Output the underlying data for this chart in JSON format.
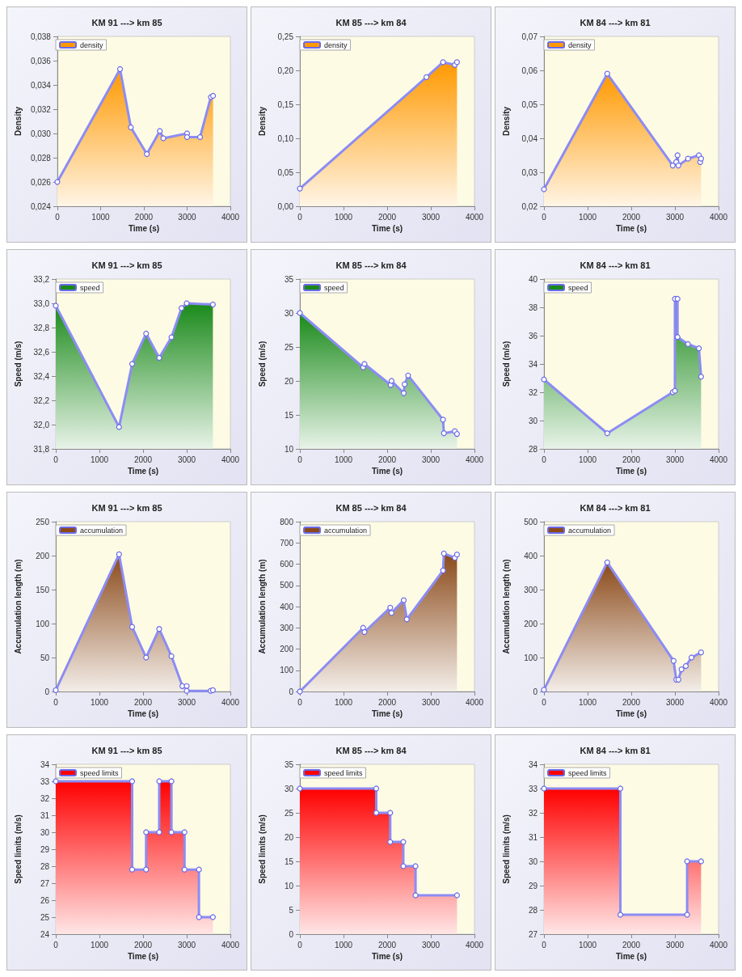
{
  "chart_data": [
    {
      "type": "area",
      "title": "KM 91 ---> km 85",
      "xlabel": "Time (s)",
      "ylabel": "Density",
      "legend": "top left",
      "marker": "circle",
      "grid": false,
      "xlim": [
        0,
        4000
      ],
      "xticks": [
        0,
        1000,
        2000,
        3000,
        4000
      ],
      "ylim": [
        0.024,
        0.038
      ],
      "yticks": [
        {
          "value": 0.024,
          "label": "0,024"
        },
        {
          "value": 0.026,
          "label": "0,026"
        },
        {
          "value": 0.028,
          "label": "0,028"
        },
        {
          "value": 0.03,
          "label": "0,030"
        },
        {
          "value": 0.032,
          "label": "0,032"
        },
        {
          "value": 0.034,
          "label": "0,034"
        },
        {
          "value": 0.036,
          "label": "0,036"
        },
        {
          "value": 0.038,
          "label": "0,038"
        }
      ],
      "series": [
        {
          "name": "density",
          "color": "#ff9900",
          "x": [
            0,
            1450,
            1700,
            2070,
            2370,
            2450,
            3000,
            3000,
            3300,
            3550,
            3600
          ],
          "values": [
            0.026,
            0.0353,
            0.0305,
            0.0283,
            0.0302,
            0.0296,
            0.03,
            0.0297,
            0.0297,
            0.033,
            0.0331
          ]
        }
      ]
    },
    {
      "type": "area",
      "title": "KM 85 ---> km 84",
      "xlabel": "Time (s)",
      "ylabel": "Density",
      "legend": "top left",
      "marker": "circle",
      "grid": false,
      "xlim": [
        0,
        4000
      ],
      "xticks": [
        0,
        1000,
        2000,
        3000,
        4000
      ],
      "ylim": [
        0,
        0.25
      ],
      "yticks": [
        {
          "value": 0,
          "label": "0,00"
        },
        {
          "value": 0.05,
          "label": "0,05"
        },
        {
          "value": 0.1,
          "label": "0,10"
        },
        {
          "value": 0.15,
          "label": "0,15"
        },
        {
          "value": 0.2,
          "label": "0,20"
        },
        {
          "value": 0.25,
          "label": "0,25"
        }
      ],
      "series": [
        {
          "name": "density",
          "color": "#ff9900",
          "x": [
            0,
            2900,
            3280,
            3550,
            3600
          ],
          "values": [
            0.026,
            0.19,
            0.212,
            0.208,
            0.212
          ]
        }
      ]
    },
    {
      "type": "area",
      "title": "KM 84 ---> km 81",
      "xlabel": "Time (s)",
      "ylabel": "Density",
      "legend": "top left",
      "marker": "circle",
      "grid": false,
      "xlim": [
        0,
        4000
      ],
      "xticks": [
        0,
        1000,
        2000,
        3000,
        4000
      ],
      "ylim": [
        0.02,
        0.07
      ],
      "yticks": [
        {
          "value": 0.02,
          "label": "0,02"
        },
        {
          "value": 0.03,
          "label": "0,03"
        },
        {
          "value": 0.04,
          "label": "0,04"
        },
        {
          "value": 0.05,
          "label": "0,05"
        },
        {
          "value": 0.06,
          "label": "0,06"
        },
        {
          "value": 0.07,
          "label": "0,07"
        }
      ],
      "series": [
        {
          "name": "density",
          "color": "#ff9900",
          "x": [
            0,
            1450,
            2950,
            3030,
            3060,
            3080,
            3300,
            3550,
            3580,
            3600
          ],
          "values": [
            0.025,
            0.059,
            0.032,
            0.033,
            0.035,
            0.032,
            0.034,
            0.035,
            0.033,
            0.034
          ]
        }
      ]
    },
    {
      "type": "area",
      "title": "KM 91 ---> km 85",
      "xlabel": "Time (s)",
      "ylabel": "Speed (m/s)",
      "legend": "top left",
      "marker": "circle",
      "grid": false,
      "xlim": [
        0,
        4000
      ],
      "xticks": [
        0,
        1000,
        2000,
        3000,
        4000
      ],
      "ylim": [
        31.8,
        33.2
      ],
      "yticks": [
        {
          "value": 31.8,
          "label": "31,8"
        },
        {
          "value": 32,
          "label": "32,0"
        },
        {
          "value": 32.2,
          "label": "32,2"
        },
        {
          "value": 32.4,
          "label": "32,4"
        },
        {
          "value": 32.6,
          "label": "32,6"
        },
        {
          "value": 32.8,
          "label": "32,8"
        },
        {
          "value": 33,
          "label": "33,0"
        },
        {
          "value": 33.2,
          "label": "33,2"
        }
      ],
      "series": [
        {
          "name": "speed",
          "color": "#1a8a1a",
          "x": [
            0,
            1450,
            1750,
            2070,
            2370,
            2650,
            2880,
            3000,
            3600
          ],
          "values": [
            32.98,
            31.98,
            32.5,
            32.75,
            32.55,
            32.72,
            32.96,
            33.0,
            32.99
          ]
        }
      ]
    },
    {
      "type": "area",
      "title": "KM 85 ---> km 84",
      "xlabel": "Time (s)",
      "ylabel": "Speed (m/s)",
      "legend": "top left",
      "marker": "circle",
      "grid": false,
      "xlim": [
        0,
        4000
      ],
      "xticks": [
        0,
        1000,
        2000,
        3000,
        4000
      ],
      "ylim": [
        10,
        35
      ],
      "yticks": [
        10,
        15,
        20,
        25,
        30,
        35
      ],
      "series": [
        {
          "name": "speed",
          "color": "#1a8a1a",
          "x": [
            0,
            1450,
            1480,
            2080,
            2100,
            2380,
            2400,
            2480,
            3280,
            3300,
            3550,
            3600
          ],
          "values": [
            30,
            22,
            22.5,
            19.4,
            20,
            18.2,
            19.5,
            20.8,
            14.3,
            12.3,
            12.6,
            12.2
          ]
        }
      ]
    },
    {
      "type": "area",
      "title": "KM 84 ---> km 81",
      "xlabel": "Time (s)",
      "ylabel": "Speed (m/s)",
      "legend": "top left",
      "marker": "circle",
      "grid": false,
      "xlim": [
        0,
        4000
      ],
      "xticks": [
        0,
        1000,
        2000,
        3000,
        4000
      ],
      "ylim": [
        28,
        40
      ],
      "yticks": [
        28,
        30,
        32,
        34,
        36,
        38,
        40
      ],
      "series": [
        {
          "name": "speed",
          "color": "#1a8a1a",
          "x": [
            0,
            1450,
            2950,
            3000,
            3000,
            3060,
            3060,
            3300,
            3550,
            3600
          ],
          "values": [
            32.9,
            29.1,
            32,
            32.1,
            38.6,
            38.6,
            35.9,
            35.4,
            35.1,
            33.1
          ]
        }
      ]
    },
    {
      "type": "area",
      "title": "KM 91 ---> km 85",
      "xlabel": "Time (s)",
      "ylabel": "Accumulation length (m)",
      "legend": "top left",
      "marker": "circle",
      "grid": false,
      "xlim": [
        0,
        4000
      ],
      "xticks": [
        0,
        1000,
        2000,
        3000,
        4000
      ],
      "ylim": [
        0,
        250
      ],
      "yticks": [
        0,
        50,
        100,
        150,
        200,
        250
      ],
      "series": [
        {
          "name": "accumulation",
          "color": "#8b4a1a",
          "x": [
            0,
            1450,
            1750,
            2070,
            2370,
            2650,
            2900,
            3000,
            3000,
            3550,
            3600
          ],
          "values": [
            2,
            202,
            95,
            50,
            92,
            52,
            8,
            8,
            1,
            1,
            2
          ]
        }
      ]
    },
    {
      "type": "area",
      "title": "KM 85 ---> km 84",
      "xlabel": "Time (s)",
      "ylabel": "Accumulation length (m)",
      "legend": "top left",
      "marker": "circle",
      "grid": false,
      "xlim": [
        0,
        4000
      ],
      "xticks": [
        0,
        1000,
        2000,
        3000,
        4000
      ],
      "ylim": [
        0,
        800
      ],
      "yticks": [
        0,
        100,
        200,
        300,
        400,
        500,
        600,
        700,
        800
      ],
      "series": [
        {
          "name": "accumulation",
          "color": "#8b4a1a",
          "x": [
            0,
            1450,
            1480,
            2070,
            2100,
            2380,
            2450,
            3280,
            3300,
            3550,
            3600
          ],
          "values": [
            0,
            300,
            280,
            395,
            370,
            430,
            340,
            570,
            650,
            630,
            645
          ]
        }
      ]
    },
    {
      "type": "area",
      "title": "KM 84 ---> km 81",
      "xlabel": "Time (s)",
      "ylabel": "Accumulation length (m)",
      "legend": "top left",
      "marker": "circle",
      "grid": false,
      "xlim": [
        0,
        4000
      ],
      "xticks": [
        0,
        1000,
        2000,
        3000,
        4000
      ],
      "ylim": [
        0,
        500
      ],
      "yticks": [
        0,
        100,
        200,
        300,
        400,
        500
      ],
      "series": [
        {
          "name": "accumulation",
          "color": "#8b4a1a",
          "x": [
            0,
            1450,
            2970,
            3030,
            3080,
            3150,
            3250,
            3380,
            3600
          ],
          "values": [
            5,
            380,
            90,
            35,
            35,
            65,
            75,
            100,
            115
          ]
        }
      ]
    },
    {
      "type": "area",
      "title": "KM 91 ---> km 85",
      "xlabel": "Time (s)",
      "ylabel": "Speed limits (m/s)",
      "legend": "top left",
      "marker": "circle",
      "grid": false,
      "xlim": [
        0,
        4000
      ],
      "xticks": [
        0,
        1000,
        2000,
        3000,
        4000
      ],
      "ylim": [
        24,
        34
      ],
      "yticks": [
        24,
        25,
        26,
        27,
        28,
        29,
        30,
        31,
        32,
        33,
        34
      ],
      "series": [
        {
          "name": "speed limits",
          "color": "#ff0000",
          "x": [
            0,
            1750,
            1750,
            2070,
            2070,
            2370,
            2370,
            2650,
            2650,
            2950,
            2950,
            3280,
            3280,
            3600
          ],
          "values": [
            33,
            33,
            27.8,
            27.8,
            30,
            30,
            33,
            33,
            30,
            30,
            27.8,
            27.8,
            25,
            25
          ]
        }
      ]
    },
    {
      "type": "area",
      "title": "KM 85 ---> km 84",
      "xlabel": "Time (s)",
      "ylabel": "Speed limits (m/s)",
      "legend": "top left",
      "marker": "circle",
      "grid": false,
      "xlim": [
        0,
        4000
      ],
      "xticks": [
        0,
        1000,
        2000,
        3000,
        4000
      ],
      "ylim": [
        0,
        35
      ],
      "yticks": [
        0,
        5,
        10,
        15,
        20,
        25,
        30,
        35
      ],
      "series": [
        {
          "name": "speed limits",
          "color": "#ff0000",
          "x": [
            0,
            1750,
            1750,
            2070,
            2070,
            2370,
            2370,
            2650,
            2650,
            3600
          ],
          "values": [
            30,
            30,
            25,
            25,
            19,
            19,
            14,
            14,
            8,
            8
          ]
        }
      ]
    },
    {
      "type": "area",
      "title": "KM 84 ---> km 81",
      "xlabel": "Time (s)",
      "ylabel": "Speed limits (m/s)",
      "legend": "top left",
      "marker": "circle",
      "grid": false,
      "xlim": [
        0,
        4000
      ],
      "xticks": [
        0,
        1000,
        2000,
        3000,
        4000
      ],
      "ylim": [
        27,
        34
      ],
      "yticks": [
        27,
        28,
        29,
        30,
        31,
        32,
        33,
        34
      ],
      "series": [
        {
          "name": "speed limits",
          "color": "#ff0000",
          "x": [
            0,
            1750,
            1750,
            3280,
            3280,
            3600
          ],
          "values": [
            33,
            33,
            27.8,
            27.8,
            30,
            30
          ]
        }
      ]
    }
  ]
}
